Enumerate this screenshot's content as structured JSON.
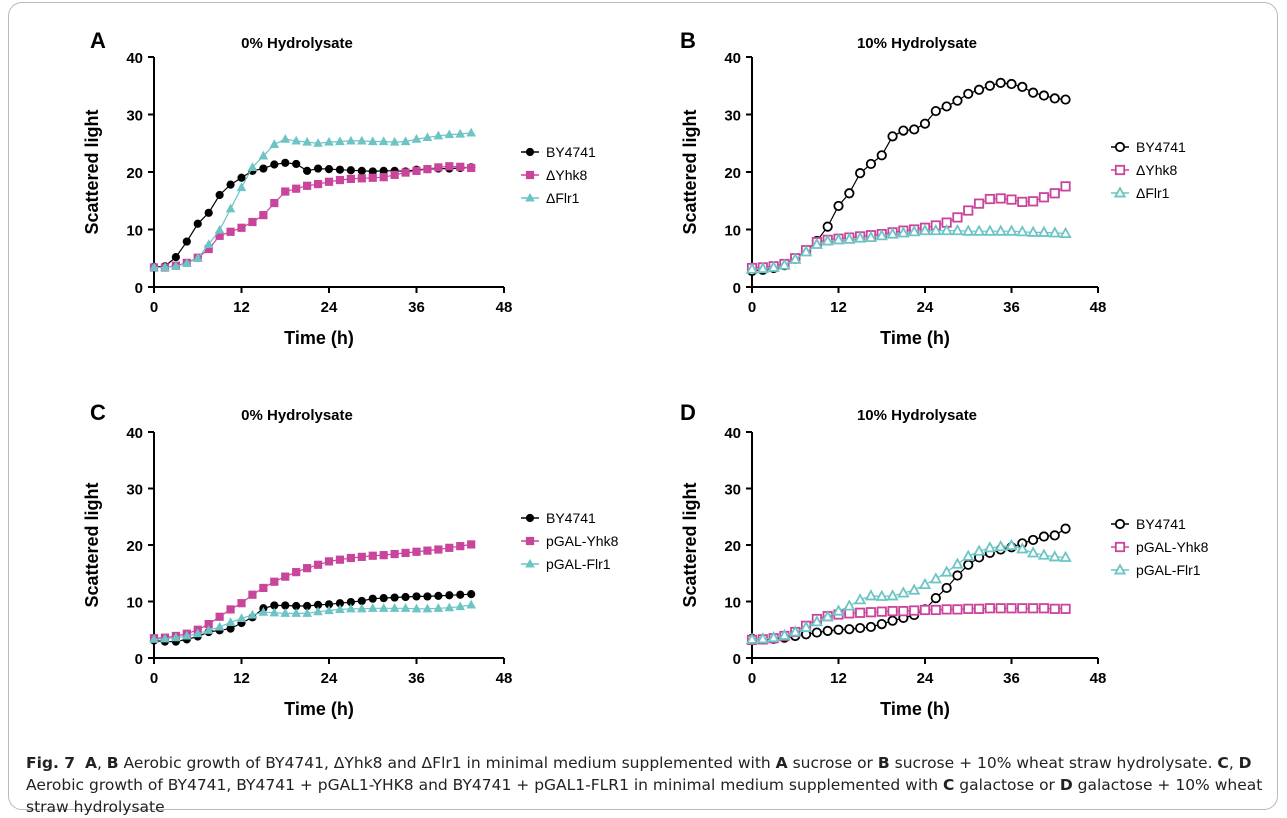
{
  "chart_data": [
    {
      "panel": "A",
      "type": "line",
      "title": "0% Hydrolysate",
      "xlabel": "Time (h)",
      "ylabel": "Scattered light",
      "xlim": [
        0,
        48
      ],
      "ylim": [
        0,
        40
      ],
      "xticks": [
        0,
        12,
        24,
        36,
        48
      ],
      "yticks": [
        0,
        10,
        20,
        30,
        40
      ],
      "legend": "right",
      "series": [
        {
          "name": "BY4741",
          "color": "#000000",
          "marker": "circle-filled",
          "x": [
            0,
            1.5,
            3,
            4.5,
            6,
            7.5,
            9,
            10.5,
            12,
            13.5,
            15,
            16.5,
            18,
            19.5,
            21,
            22.5,
            24,
            25.5,
            27,
            28.5,
            30,
            31.5,
            33,
            34.5,
            36,
            37.5,
            39,
            40.5,
            42,
            43.5
          ],
          "y": [
            3.5,
            3.6,
            5.2,
            7.9,
            11.0,
            12.9,
            16.0,
            17.8,
            19.0,
            20.2,
            20.6,
            21.3,
            21.6,
            21.4,
            20.2,
            20.6,
            20.5,
            20.4,
            20.3,
            20.2,
            20.1,
            20.2,
            20.2,
            20.1,
            20.4,
            20.5,
            20.6,
            20.6,
            20.7,
            20.8
          ]
        },
        {
          "name": "ΔYhk8",
          "color": "#c9449b",
          "marker": "square-filled",
          "x": [
            0,
            1.5,
            3,
            4.5,
            6,
            7.5,
            9,
            10.5,
            12,
            13.5,
            15,
            16.5,
            18,
            19.5,
            21,
            22.5,
            24,
            25.5,
            27,
            28.5,
            30,
            31.5,
            33,
            34.5,
            36,
            37.5,
            39,
            40.5,
            42,
            43.5
          ],
          "y": [
            3.4,
            3.4,
            3.7,
            4.2,
            5.1,
            6.6,
            8.9,
            9.6,
            10.3,
            11.3,
            12.5,
            14.6,
            16.6,
            17.1,
            17.6,
            17.9,
            18.3,
            18.6,
            18.8,
            18.9,
            19.0,
            19.1,
            19.5,
            19.9,
            20.2,
            20.5,
            20.8,
            21.0,
            20.9,
            20.7
          ]
        },
        {
          "name": "ΔFlr1",
          "color": "#6cc4c4",
          "marker": "triangle-filled",
          "x": [
            0,
            1.5,
            3,
            4.5,
            6,
            7.5,
            9,
            10.5,
            12,
            13.5,
            15,
            16.5,
            18,
            19.5,
            21,
            22.5,
            24,
            25.5,
            27,
            28.5,
            30,
            31.5,
            33,
            34.5,
            36,
            37.5,
            39,
            40.5,
            42,
            43.5
          ],
          "y": [
            3.4,
            3.4,
            3.6,
            4.1,
            5.0,
            7.4,
            9.9,
            13.6,
            17.3,
            20.8,
            22.8,
            24.8,
            25.7,
            25.4,
            25.2,
            25.0,
            25.2,
            25.3,
            25.4,
            25.4,
            25.3,
            25.3,
            25.2,
            25.3,
            25.7,
            26.0,
            26.3,
            26.5,
            26.6,
            26.8
          ]
        }
      ]
    },
    {
      "panel": "B",
      "type": "line",
      "title": "10% Hydrolysate",
      "xlabel": "Time (h)",
      "ylabel": "Scattered light",
      "xlim": [
        0,
        48
      ],
      "ylim": [
        0,
        40
      ],
      "xticks": [
        0,
        12,
        24,
        36,
        48
      ],
      "yticks": [
        0,
        10,
        20,
        30,
        40
      ],
      "legend": "right",
      "series": [
        {
          "name": "BY4741",
          "color": "#000000",
          "marker": "circle-open",
          "x": [
            0,
            1.5,
            3,
            4.5,
            6,
            7.5,
            9,
            10.5,
            12,
            13.5,
            15,
            16.5,
            18,
            19.5,
            21,
            22.5,
            24,
            25.5,
            27,
            28.5,
            30,
            31.5,
            33,
            34.5,
            36,
            37.5,
            39,
            40.5,
            42,
            43.5
          ],
          "y": [
            2.8,
            3.0,
            3.3,
            3.8,
            4.9,
            6.3,
            8.0,
            10.5,
            14.1,
            16.3,
            19.8,
            21.4,
            22.9,
            26.2,
            27.2,
            27.4,
            28.4,
            30.6,
            31.4,
            32.4,
            33.6,
            34.3,
            35.0,
            35.5,
            35.3,
            34.8,
            33.8,
            33.3,
            32.8,
            32.6
          ]
        },
        {
          "name": "ΔYhk8",
          "color": "#c9449b",
          "marker": "square-open",
          "x": [
            0,
            1.5,
            3,
            4.5,
            6,
            7.5,
            9,
            10.5,
            12,
            13.5,
            15,
            16.5,
            18,
            19.5,
            21,
            22.5,
            24,
            25.5,
            27,
            28.5,
            30,
            31.5,
            33,
            34.5,
            36,
            37.5,
            39,
            40.5,
            42,
            43.5
          ],
          "y": [
            3.3,
            3.4,
            3.6,
            4.0,
            5.0,
            6.4,
            7.8,
            8.2,
            8.4,
            8.6,
            8.8,
            9.0,
            9.2,
            9.5,
            9.8,
            10.0,
            10.3,
            10.7,
            11.2,
            12.1,
            13.3,
            14.5,
            15.3,
            15.4,
            15.2,
            14.8,
            14.9,
            15.6,
            16.3,
            17.5
          ]
        },
        {
          "name": "ΔFlr1",
          "color": "#6cc4c4",
          "marker": "triangle-open",
          "x": [
            0,
            1.5,
            3,
            4.5,
            6,
            7.5,
            9,
            10.5,
            12,
            13.5,
            15,
            16.5,
            18,
            19.5,
            21,
            22.5,
            24,
            25.5,
            27,
            28.5,
            30,
            31.5,
            33,
            34.5,
            36,
            37.5,
            39,
            40.5,
            42,
            43.5
          ],
          "y": [
            3.1,
            3.2,
            3.4,
            3.8,
            4.8,
            6.1,
            7.4,
            8.0,
            8.2,
            8.3,
            8.5,
            8.6,
            8.9,
            9.2,
            9.4,
            9.6,
            9.8,
            9.8,
            9.8,
            9.8,
            9.7,
            9.7,
            9.7,
            9.7,
            9.7,
            9.6,
            9.5,
            9.5,
            9.4,
            9.3
          ]
        }
      ]
    },
    {
      "panel": "C",
      "type": "line",
      "title": "0% Hydrolysate",
      "xlabel": "Time (h)",
      "ylabel": "Scattered light",
      "xlim": [
        0,
        48
      ],
      "ylim": [
        0,
        40
      ],
      "xticks": [
        0,
        12,
        24,
        36,
        48
      ],
      "yticks": [
        0,
        10,
        20,
        30,
        40
      ],
      "legend": "right",
      "series": [
        {
          "name": "BY4741",
          "color": "#000000",
          "marker": "circle-filled",
          "x": [
            0,
            1.5,
            3,
            4.5,
            6,
            7.5,
            9,
            10.5,
            12,
            13.5,
            15,
            16.5,
            18,
            19.5,
            21,
            22.5,
            24,
            25.5,
            27,
            28.5,
            30,
            31.5,
            33,
            34.5,
            36,
            37.5,
            39,
            40.5,
            42,
            43.5
          ],
          "y": [
            3.1,
            2.9,
            2.9,
            3.3,
            3.8,
            4.6,
            4.9,
            5.2,
            6.2,
            7.2,
            8.8,
            9.3,
            9.3,
            9.2,
            9.2,
            9.4,
            9.5,
            9.7,
            9.9,
            10.1,
            10.5,
            10.6,
            10.7,
            10.8,
            10.9,
            10.9,
            11.0,
            11.1,
            11.2,
            11.3
          ]
        },
        {
          "name": "pGAL-Yhk8",
          "color": "#c9449b",
          "marker": "square-filled",
          "x": [
            0,
            1.5,
            3,
            4.5,
            6,
            7.5,
            9,
            10.5,
            12,
            13.5,
            15,
            16.5,
            18,
            19.5,
            21,
            22.5,
            24,
            25.5,
            27,
            28.5,
            30,
            31.5,
            33,
            34.5,
            36,
            37.5,
            39,
            40.5,
            42,
            43.5
          ],
          "y": [
            3.5,
            3.6,
            3.9,
            4.3,
            5.0,
            6.0,
            7.3,
            8.6,
            9.7,
            11.2,
            12.4,
            13.5,
            14.4,
            15.2,
            15.9,
            16.5,
            17.1,
            17.4,
            17.7,
            17.9,
            18.1,
            18.2,
            18.4,
            18.6,
            18.8,
            19.0,
            19.2,
            19.5,
            19.8,
            20.1
          ]
        },
        {
          "name": "pGAL-Flr1",
          "color": "#6cc4c4",
          "marker": "triangle-filled",
          "x": [
            0,
            1.5,
            3,
            4.5,
            6,
            7.5,
            9,
            10.5,
            12,
            13.5,
            15,
            16.5,
            18,
            19.5,
            21,
            22.5,
            24,
            25.5,
            27,
            28.5,
            30,
            31.5,
            33,
            34.5,
            36,
            37.5,
            39,
            40.5,
            42,
            43.5
          ],
          "y": [
            3.3,
            3.4,
            3.6,
            3.9,
            4.3,
            4.9,
            5.5,
            6.3,
            7.0,
            7.6,
            8.1,
            8.0,
            7.9,
            7.9,
            7.9,
            8.2,
            8.4,
            8.6,
            8.7,
            8.7,
            8.8,
            8.8,
            8.8,
            8.8,
            8.7,
            8.7,
            8.8,
            8.9,
            9.1,
            9.4
          ]
        }
      ]
    },
    {
      "panel": "D",
      "type": "line",
      "title": "10% Hydrolysate",
      "xlabel": "Time (h)",
      "ylabel": "Scattered light",
      "xlim": [
        0,
        48
      ],
      "ylim": [
        0,
        40
      ],
      "xticks": [
        0,
        12,
        24,
        36,
        48
      ],
      "yticks": [
        0,
        10,
        20,
        30,
        40
      ],
      "legend": "right",
      "series": [
        {
          "name": "BY4741",
          "color": "#000000",
          "marker": "circle-open",
          "x": [
            0,
            1.5,
            3,
            4.5,
            6,
            7.5,
            9,
            10.5,
            12,
            13.5,
            15,
            16.5,
            18,
            19.5,
            21,
            22.5,
            24,
            25.5,
            27,
            28.5,
            30,
            31.5,
            33,
            34.5,
            36,
            37.5,
            39,
            40.5,
            42,
            43.5
          ],
          "y": [
            3.4,
            3.3,
            3.4,
            3.6,
            3.9,
            4.2,
            4.5,
            4.8,
            5.0,
            5.1,
            5.3,
            5.5,
            6.0,
            6.6,
            7.1,
            7.6,
            8.6,
            10.6,
            12.4,
            14.6,
            16.5,
            17.8,
            18.6,
            19.2,
            19.6,
            20.3,
            20.9,
            21.5,
            21.7,
            22.9
          ]
        },
        {
          "name": "pGAL-Yhk8",
          "color": "#c9449b",
          "marker": "square-open",
          "x": [
            0,
            1.5,
            3,
            4.5,
            6,
            7.5,
            9,
            10.5,
            12,
            13.5,
            15,
            16.5,
            18,
            19.5,
            21,
            22.5,
            24,
            25.5,
            27,
            28.5,
            30,
            31.5,
            33,
            34.5,
            36,
            37.5,
            39,
            40.5,
            42,
            43.5
          ],
          "y": [
            3.2,
            3.3,
            3.5,
            3.9,
            4.6,
            5.7,
            6.9,
            7.4,
            7.7,
            7.9,
            8.0,
            8.1,
            8.2,
            8.3,
            8.3,
            8.4,
            8.5,
            8.5,
            8.6,
            8.6,
            8.7,
            8.7,
            8.8,
            8.8,
            8.8,
            8.8,
            8.8,
            8.8,
            8.7,
            8.7
          ]
        },
        {
          "name": "pGAL-Flr1",
          "color": "#6cc4c4",
          "marker": "triangle-open",
          "x": [
            0,
            1.5,
            3,
            4.5,
            6,
            7.5,
            9,
            10.5,
            12,
            13.5,
            15,
            16.5,
            18,
            19.5,
            21,
            22.5,
            24,
            25.5,
            27,
            28.5,
            30,
            31.5,
            33,
            34.5,
            36,
            37.5,
            39,
            40.5,
            42,
            43.5
          ],
          "y": [
            3.3,
            3.4,
            3.6,
            4.0,
            4.6,
            5.4,
            6.4,
            7.3,
            8.3,
            9.2,
            10.3,
            11.0,
            10.9,
            11.0,
            11.5,
            12.0,
            13.0,
            14.0,
            15.2,
            16.6,
            18.0,
            18.9,
            19.5,
            19.7,
            19.9,
            19.3,
            18.6,
            18.2,
            17.9,
            17.8
          ]
        }
      ]
    }
  ],
  "caption": {
    "fig_label": "Fig. 7",
    "parts": [
      {
        "t": "A",
        "b": true
      },
      {
        "t": ", ",
        "b": false
      },
      {
        "t": "B",
        "b": true
      },
      {
        "t": " Aerobic growth of BY4741, ΔYhk8 and ΔFlr1 in minimal medium supplemented with ",
        "b": false
      },
      {
        "t": "A",
        "b": true
      },
      {
        "t": " sucrose or ",
        "b": false
      },
      {
        "t": "B",
        "b": true
      },
      {
        "t": " sucrose + 10% wheat straw hydrolysate. ",
        "b": false
      },
      {
        "t": "C",
        "b": true
      },
      {
        "t": ", ",
        "b": false
      },
      {
        "t": "D",
        "b": true
      },
      {
        "t": " Aerobic growth of BY4741, BY4741 + pGAL1-YHK8 and BY4741 + pGAL1-FLR1 in minimal medium supplemented with ",
        "b": false
      },
      {
        "t": "C",
        "b": true
      },
      {
        "t": " galactose or ",
        "b": false
      },
      {
        "t": "D",
        "b": true
      },
      {
        "t": " galactose + 10% wheat straw hydrolysate",
        "b": false
      }
    ]
  }
}
